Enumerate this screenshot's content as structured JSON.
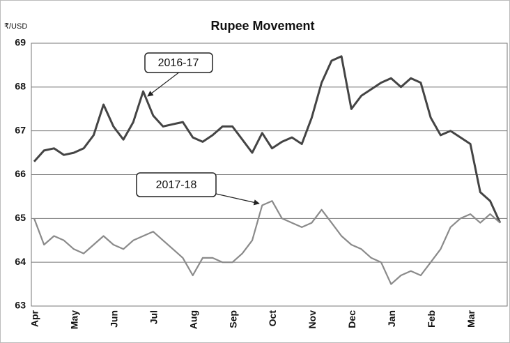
{
  "chart_data": {
    "type": "line",
    "title": "Rupee Movement",
    "y_label": "₹/USD",
    "categories": [
      "Apr",
      null,
      null,
      null,
      "May",
      null,
      null,
      null,
      "Jun",
      null,
      null,
      null,
      "Jul",
      null,
      null,
      null,
      "Aug",
      null,
      null,
      null,
      "Sep",
      null,
      null,
      null,
      "Oct",
      null,
      null,
      null,
      "Nov",
      null,
      null,
      null,
      "Dec",
      null,
      null,
      null,
      "Jan",
      null,
      null,
      null,
      "Feb",
      null,
      null,
      null,
      "Mar",
      null,
      null,
      null
    ],
    "series": [
      {
        "name": "2016-17",
        "color": "#444444",
        "values": [
          66.3,
          66.55,
          66.6,
          66.45,
          66.5,
          66.6,
          66.9,
          67.6,
          67.1,
          66.8,
          67.2,
          67.9,
          67.35,
          67.1,
          67.15,
          67.2,
          66.85,
          66.75,
          66.9,
          67.1,
          67.1,
          66.8,
          66.5,
          66.95,
          66.6,
          66.75,
          66.85,
          66.7,
          67.3,
          68.1,
          68.6,
          68.7,
          67.5,
          67.8,
          67.95,
          68.1,
          68.2,
          68.0,
          68.2,
          68.1,
          67.3,
          66.9,
          67.0,
          66.85,
          66.7,
          65.6,
          65.4,
          64.9
        ]
      },
      {
        "name": "2017-18",
        "color": "#8a8a8a",
        "values": [
          65.0,
          64.4,
          64.6,
          64.5,
          64.3,
          64.2,
          64.4,
          64.6,
          64.4,
          64.3,
          64.5,
          64.6,
          64.7,
          64.5,
          64.3,
          64.1,
          63.7,
          64.1,
          64.1,
          64.0,
          64.0,
          64.2,
          64.5,
          65.3,
          65.4,
          65.0,
          64.9,
          64.8,
          64.9,
          65.2,
          64.9,
          64.6,
          64.4,
          64.3,
          64.1,
          64.0,
          63.5,
          63.7,
          63.8,
          63.7,
          64.0,
          64.3,
          64.8,
          65.0,
          65.1,
          64.9,
          65.1,
          64.9
        ]
      }
    ],
    "annotations": [
      {
        "text": "2016-17"
      },
      {
        "text": "2017-18"
      }
    ],
    "ylim": [
      63,
      69
    ],
    "yticks": [
      63,
      64,
      65,
      66,
      67,
      68,
      69
    ],
    "grid": true
  }
}
